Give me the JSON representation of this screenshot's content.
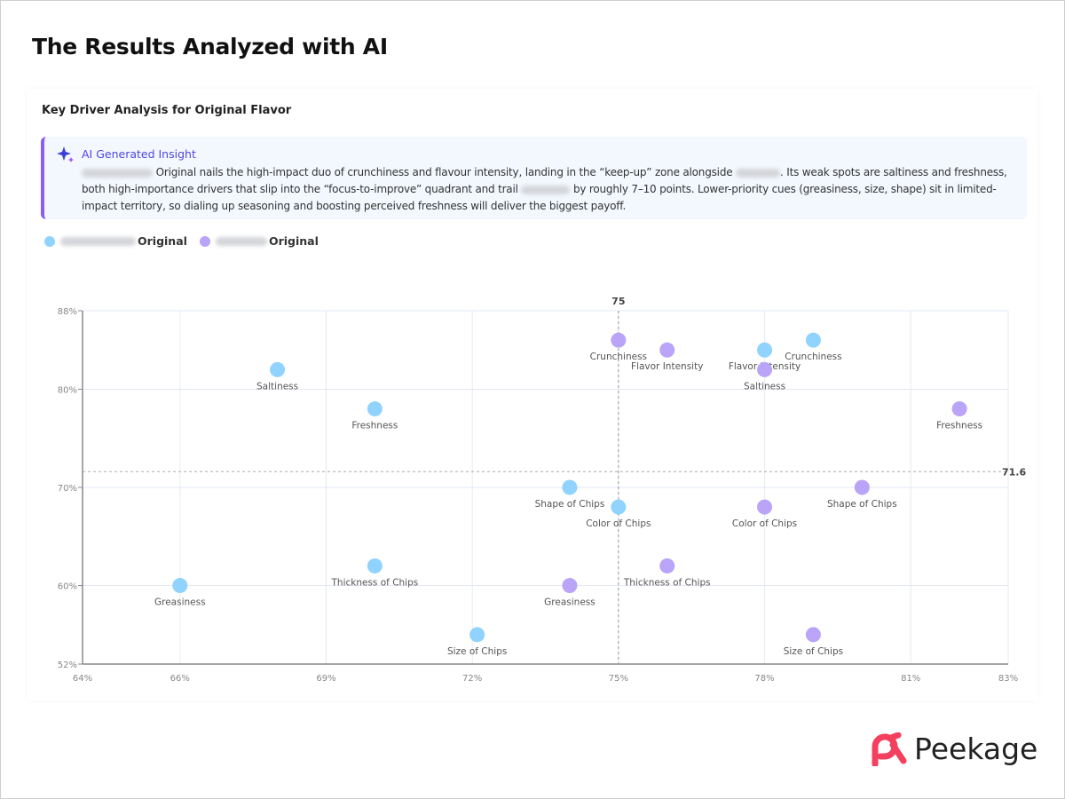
{
  "page": {
    "title": "The Results Analyzed with AI"
  },
  "section": {
    "subtitle": "Key Driver Analysis for Original Flavor"
  },
  "insight": {
    "icon": "sparkle-icon",
    "heading": "AI Generated Insight",
    "parts": [
      " Original nails the high-impact duo of crunchiness and flavour intensity, landing in the “keep-up” zone alongside ",
      ". Its weak spots are saltiness and freshness, both high-importance drivers that slip into the “focus-to-improve” quadrant and trail ",
      " by roughly 7–10 points. Lower-priority cues (greasiness, size, shape) sit in limited-impact territory, so dialing up seasoning and boosting perceived freshness will deliver the biggest payoff."
    ]
  },
  "legend": [
    {
      "label": "Original",
      "color": "#8fd3fe"
    },
    {
      "label": "Original",
      "color": "#b9a4f7"
    }
  ],
  "brand": {
    "name": "Peekage",
    "color": "#f43f5e"
  },
  "chart_data": {
    "type": "scatter",
    "xlim": [
      64,
      83
    ],
    "ylim": [
      52,
      88
    ],
    "x_ticks": [
      "64%",
      "66%",
      "69%",
      "72%",
      "75%",
      "78%",
      "81%",
      "83%"
    ],
    "x_tick_values": [
      64,
      66,
      69,
      72,
      75,
      78,
      81,
      83
    ],
    "y_ticks": [
      "52%",
      "60%",
      "70%",
      "80%",
      "88%"
    ],
    "y_tick_values": [
      52,
      60,
      70,
      80,
      88
    ],
    "grid": true,
    "reference_lines": {
      "x": 75,
      "x_label": "75",
      "y": 71.6,
      "y_label": "71.6"
    },
    "legend_position": "top-left",
    "series": [
      {
        "color": "#8fd3fe",
        "points": [
          {
            "label": "Saltiness",
            "x": 68,
            "y": 82
          },
          {
            "label": "Freshness",
            "x": 70,
            "y": 78
          },
          {
            "label": "Greasiness",
            "x": 66,
            "y": 60
          },
          {
            "label": "Thickness of Chips",
            "x": 70,
            "y": 62
          },
          {
            "label": "Size of Chips",
            "x": 72.1,
            "y": 55
          },
          {
            "label": "Shape of Chips",
            "x": 74,
            "y": 70
          },
          {
            "label": "Color of Chips",
            "x": 75,
            "y": 68
          },
          {
            "label": "Flavor Intensity",
            "x": 78,
            "y": 84
          },
          {
            "label": "Crunchiness",
            "x": 79,
            "y": 85
          }
        ]
      },
      {
        "color": "#b9a4f7",
        "points": [
          {
            "label": "Crunchiness",
            "x": 75,
            "y": 85
          },
          {
            "label": "Flavor Intensity",
            "x": 76,
            "y": 84
          },
          {
            "label": "Saltiness",
            "x": 78,
            "y": 82
          },
          {
            "label": "Freshness",
            "x": 82,
            "y": 78
          },
          {
            "label": "Shape of Chips",
            "x": 80,
            "y": 70
          },
          {
            "label": "Color of Chips",
            "x": 78,
            "y": 68
          },
          {
            "label": "Thickness of Chips",
            "x": 76,
            "y": 62
          },
          {
            "label": "Greasiness",
            "x": 74,
            "y": 60
          },
          {
            "label": "Size of Chips",
            "x": 79,
            "y": 55
          }
        ]
      }
    ]
  }
}
